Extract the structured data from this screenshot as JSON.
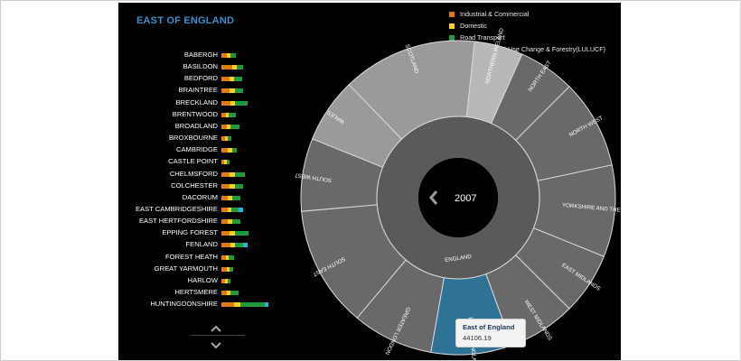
{
  "region_title": "EAST OF ENGLAND",
  "colors": {
    "industrial": "#e07b10",
    "domestic": "#ffd21f",
    "road": "#1f9a3f",
    "lulucf": "#27b6c9",
    "ring_fill": "#696969",
    "ring_light": "#9a9a9a",
    "ring_lighter": "#b8b8b8",
    "selected": "#2e7396"
  },
  "legend": [
    {
      "label": "Industrial & Commercial",
      "color": "#e07b10"
    },
    {
      "label": "Domestic",
      "color": "#ffd21f"
    },
    {
      "label": "Road Transport",
      "color": "#1f9a3f"
    },
    {
      "label": "Land Use, Land-Use Change & Forestry(LULUCF)",
      "color": "#27b6c9"
    }
  ],
  "districts": [
    {
      "name": "BABERGH",
      "values": [
        6,
        4,
        6,
        0
      ]
    },
    {
      "name": "BASILDON",
      "values": [
        12,
        5,
        7,
        0
      ]
    },
    {
      "name": "BEDFORD",
      "values": [
        9,
        5,
        9,
        0
      ]
    },
    {
      "name": "BRAINTREE",
      "values": [
        9,
        6,
        9,
        0
      ]
    },
    {
      "name": "BRECKLAND",
      "values": [
        10,
        5,
        14,
        0
      ]
    },
    {
      "name": "BRENTWOOD",
      "values": [
        5,
        3,
        8,
        0
      ]
    },
    {
      "name": "BROADLAND",
      "values": [
        6,
        4,
        10,
        0
      ]
    },
    {
      "name": "BROXBOURNE",
      "values": [
        4,
        3,
        4,
        0
      ]
    },
    {
      "name": "CAMBRIDGE",
      "values": [
        7,
        5,
        5,
        0
      ]
    },
    {
      "name": "CASTLE POINT",
      "values": [
        3,
        3,
        3,
        0
      ]
    },
    {
      "name": "CHELMSFORD",
      "values": [
        9,
        6,
        11,
        0
      ]
    },
    {
      "name": "COLCHESTER",
      "values": [
        9,
        6,
        9,
        0
      ]
    },
    {
      "name": "DACORUM",
      "values": [
        7,
        5,
        9,
        0
      ]
    },
    {
      "name": "EAST CAMBRIDGESHIRE",
      "values": [
        7,
        4,
        8,
        5
      ]
    },
    {
      "name": "EAST HERTFORDSHIRE",
      "values": [
        7,
        5,
        9,
        0
      ]
    },
    {
      "name": "EPPING FOREST",
      "values": [
        9,
        6,
        15,
        0
      ]
    },
    {
      "name": "FENLAND",
      "values": [
        10,
        5,
        9,
        5
      ]
    },
    {
      "name": "FOREST HEATH",
      "values": [
        5,
        3,
        6,
        0
      ]
    },
    {
      "name": "GREAT YARMOUTH",
      "values": [
        6,
        3,
        4,
        0
      ]
    },
    {
      "name": "HARLOW",
      "values": [
        4,
        3,
        3,
        0
      ]
    },
    {
      "name": "HERTSMERE",
      "values": [
        6,
        4,
        9,
        0
      ]
    },
    {
      "name": "HUNTINGDONSHIRE",
      "values": [
        14,
        7,
        27,
        4
      ]
    }
  ],
  "center_label": "2007",
  "inner_label": "ENGLAND",
  "outer_segments": [
    {
      "name": "SCOTLAND",
      "shade": "light"
    },
    {
      "name": "NORTHERN IRELAND",
      "shade": "lighter"
    },
    {
      "name": "NORTH EAST",
      "shade": "normal"
    },
    {
      "name": "NORTH WEST",
      "shade": "normal"
    },
    {
      "name": "YORKSHIRE AND THE HUMBER",
      "shade": "normal"
    },
    {
      "name": "EAST MIDLANDS",
      "shade": "normal"
    },
    {
      "name": "WEST MIDLANDS",
      "shade": "normal"
    },
    {
      "name": "EAST OF ENGLAND",
      "shade": "selected"
    },
    {
      "name": "GREATER LONDON",
      "shade": "normal"
    },
    {
      "name": "SOUTH EAST",
      "shade": "normal"
    },
    {
      "name": "SOUTH WEST",
      "shade": "normal"
    },
    {
      "name": "WALES",
      "shade": "light"
    }
  ],
  "tooltip": {
    "title": "East of England",
    "value": "44106.19"
  }
}
